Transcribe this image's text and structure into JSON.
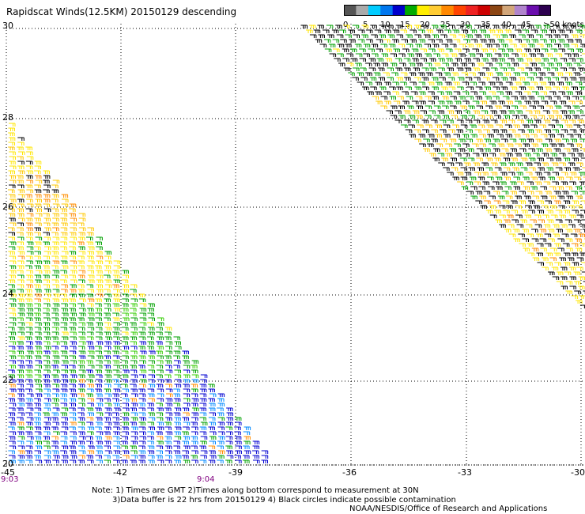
{
  "title": "Rapidscat Winds(12.5KM) 20150129 descending",
  "colorbar": {
    "colors": [
      "#555555",
      "#aaaaaa",
      "#00ccff",
      "#0077ee",
      "#0000cc",
      "#00aa00",
      "#ffee00",
      "#ffcc33",
      "#ff8800",
      "#ff4400",
      "#ee2222",
      "#cc0000",
      "#8b4513",
      "#d2a679",
      "#b084cc",
      "#6a0dad",
      "#2d0050"
    ],
    "labels": [
      "0",
      "5",
      "10",
      "15",
      "20",
      "25",
      "30",
      "35",
      "40",
      "45",
      ">50 knots"
    ]
  },
  "map": {
    "lat_labels": [
      "30",
      "28",
      "26",
      "24",
      "22",
      "20"
    ],
    "lon_labels": [
      "-45",
      "-42",
      "-39",
      "-36",
      "-33",
      "-30"
    ],
    "time_labels": [
      "9:03",
      "9:04"
    ],
    "wind_colors": {
      "black": "#000000",
      "yellow": "#ffe600",
      "gold": "#ffc800",
      "orange": "#ff8c00",
      "green": "#00a000",
      "lime": "#33cc00",
      "blue": "#0000d0",
      "lightblue": "#0088ff"
    }
  },
  "notes": [
    "Note: 1) Times are GMT 2)Times along bottom correspond to measurement at 30N",
    "3)Data buffer is 22 hrs from 20150129 4) Black circles indicate possible contamination"
  ],
  "credit": "NOAA/NESDIS/Office of Research and Applications"
}
